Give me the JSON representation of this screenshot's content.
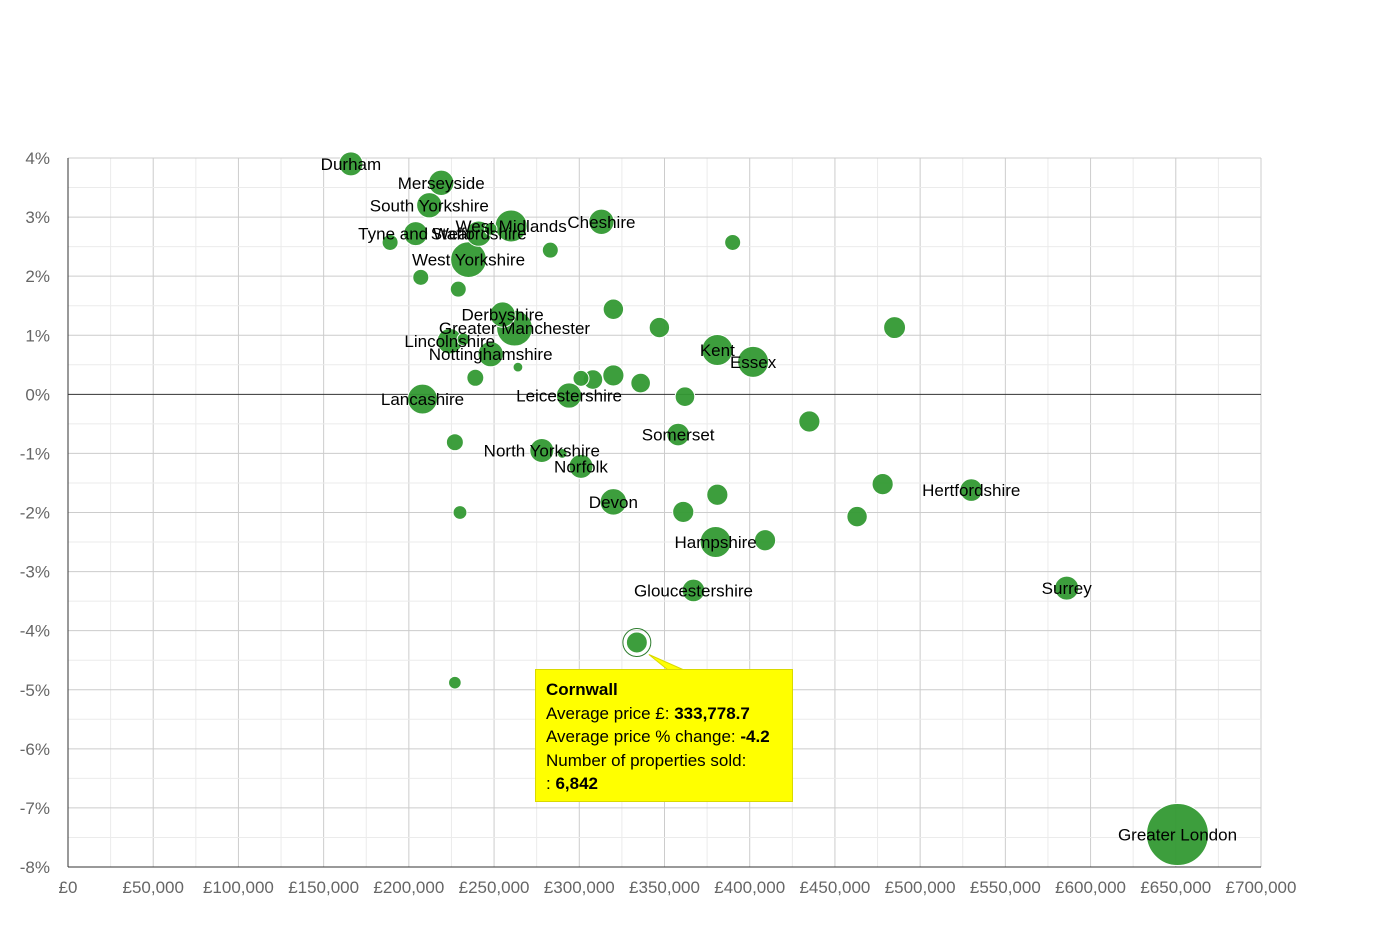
{
  "chart_data": {
    "type": "bubble",
    "xlabel": "",
    "ylabel": "",
    "xlim": [
      0,
      700000
    ],
    "ylim": [
      -8,
      4
    ],
    "x_tick_labels": [
      "£0",
      "£50,000",
      "£100,000",
      "£150,000",
      "£200,000",
      "£250,000",
      "£300,000",
      "£350,000",
      "£400,000",
      "£450,000",
      "£500,000",
      "£550,000",
      "£600,000",
      "£650,000",
      "£700,000"
    ],
    "y_tick_labels": [
      "4%",
      "3%",
      "2%",
      "1%",
      "0%",
      "-1%",
      "-2%",
      "-3%",
      "-4%",
      "-5%",
      "-6%",
      "-7%",
      "-8%"
    ],
    "grid": true,
    "color": "#339933",
    "points": [
      {
        "label": "Durham",
        "x": 166000,
        "y": 3.9,
        "size": 9000
      },
      {
        "label": "Merseyside",
        "x": 219000,
        "y": 3.58,
        "size": 10000
      },
      {
        "label": "South Yorkshire",
        "x": 212000,
        "y": 3.2,
        "size": 10000
      },
      {
        "label": "Tyne and Wear",
        "x": 204000,
        "y": 2.72,
        "size": 9000
      },
      {
        "label": "Staffordshire",
        "x": 241000,
        "y": 2.72,
        "size": 10000
      },
      {
        "label": "West Midlands",
        "x": 260000,
        "y": 2.85,
        "size": 16000
      },
      {
        "label": "Cheshire",
        "x": 313000,
        "y": 2.92,
        "size": 10000
      },
      {
        "label": "West Yorkshire",
        "x": 235000,
        "y": 2.28,
        "size": 20000
      },
      {
        "label": "Derbyshire",
        "x": 255000,
        "y": 1.35,
        "size": 10000
      },
      {
        "label": "Greater Manchester",
        "x": 262000,
        "y": 1.12,
        "size": 20000
      },
      {
        "label": "Lincolnshire",
        "x": 224000,
        "y": 0.9,
        "size": 10000
      },
      {
        "label": "Nottinghamshire",
        "x": 248000,
        "y": 0.68,
        "size": 10000
      },
      {
        "label": "Kent",
        "x": 381000,
        "y": 0.75,
        "size": 15000
      },
      {
        "label": "Essex",
        "x": 402000,
        "y": 0.55,
        "size": 15000
      },
      {
        "label": "Lancashire",
        "x": 208000,
        "y": -0.08,
        "size": 14000
      },
      {
        "label": "Leicestershire",
        "x": 294000,
        "y": -0.02,
        "size": 10000
      },
      {
        "label": "Somerset",
        "x": 358000,
        "y": -0.68,
        "size": 8000
      },
      {
        "label": "North Yorkshire",
        "x": 278000,
        "y": -0.95,
        "size": 9000
      },
      {
        "label": "Norfolk",
        "x": 301000,
        "y": -1.22,
        "size": 9000
      },
      {
        "label": "Hertfordshire",
        "x": 530000,
        "y": -1.62,
        "size": 8000
      },
      {
        "label": "Devon",
        "x": 320000,
        "y": -1.82,
        "size": 11000
      },
      {
        "label": "Hampshire",
        "x": 380000,
        "y": -2.5,
        "size": 15000
      },
      {
        "label": "Gloucestershire",
        "x": 367000,
        "y": -3.32,
        "size": 8000
      },
      {
        "label": "Surrey",
        "x": 586000,
        "y": -3.28,
        "size": 9000
      },
      {
        "label": "Greater London",
        "x": 651000,
        "y": -7.45,
        "size": 60000
      },
      {
        "label": "Cornwall",
        "x": 333778.7,
        "y": -4.2,
        "size": 6842
      },
      {
        "label": "",
        "x": 189000,
        "y": 2.57,
        "size": 4000
      },
      {
        "label": "",
        "x": 207000,
        "y": 1.98,
        "size": 4000
      },
      {
        "label": "",
        "x": 229000,
        "y": 1.78,
        "size": 4000
      },
      {
        "label": "",
        "x": 248000,
        "y": 2.8,
        "size": 2500
      },
      {
        "label": "",
        "x": 283000,
        "y": 2.44,
        "size": 4000
      },
      {
        "label": "",
        "x": 390000,
        "y": 2.57,
        "size": 4000
      },
      {
        "label": "",
        "x": 320000,
        "y": 1.44,
        "size": 6500
      },
      {
        "label": "",
        "x": 347000,
        "y": 1.13,
        "size": 6500
      },
      {
        "label": "",
        "x": 485000,
        "y": 1.13,
        "size": 7500
      },
      {
        "label": "",
        "x": 232000,
        "y": 0.93,
        "size": 2500
      },
      {
        "label": "",
        "x": 264000,
        "y": 0.46,
        "size": 1500
      },
      {
        "label": "",
        "x": 239000,
        "y": 0.28,
        "size": 4500
      },
      {
        "label": "",
        "x": 301000,
        "y": 0.27,
        "size": 4000
      },
      {
        "label": "",
        "x": 308000,
        "y": 0.25,
        "size": 6000
      },
      {
        "label": "",
        "x": 320000,
        "y": 0.32,
        "size": 7000
      },
      {
        "label": "",
        "x": 336000,
        "y": 0.19,
        "size": 6000
      },
      {
        "label": "",
        "x": 362000,
        "y": -0.04,
        "size": 6000
      },
      {
        "label": "",
        "x": 435000,
        "y": -0.46,
        "size": 7000
      },
      {
        "label": "",
        "x": 227000,
        "y": -0.81,
        "size": 4500
      },
      {
        "label": "",
        "x": 290000,
        "y": -1.0,
        "size": 1500
      },
      {
        "label": "",
        "x": 381000,
        "y": -1.7,
        "size": 7000
      },
      {
        "label": "",
        "x": 478000,
        "y": -1.52,
        "size": 7000
      },
      {
        "label": "",
        "x": 230000,
        "y": -2.0,
        "size": 3000
      },
      {
        "label": "",
        "x": 361000,
        "y": -1.99,
        "size": 7000
      },
      {
        "label": "",
        "x": 463000,
        "y": -2.07,
        "size": 6500
      },
      {
        "label": "",
        "x": 409000,
        "y": -2.47,
        "size": 7000
      },
      {
        "label": "",
        "x": 227000,
        "y": -4.88,
        "size": 2500
      }
    ]
  },
  "tooltip": {
    "title": "Cornwall",
    "price_label": "Average price £:",
    "price_value": "333,778.7",
    "change_label": "Average price % change:",
    "change_value": "-4.2",
    "sold_label": "Number of properties sold:",
    "sold_prefix": ":",
    "sold_value": "6,842"
  }
}
